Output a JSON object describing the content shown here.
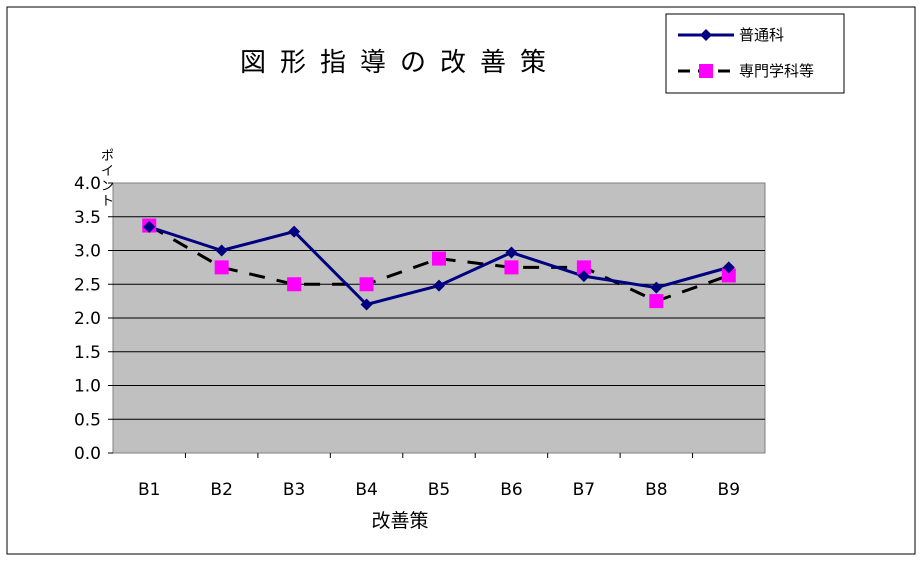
{
  "chart_data": {
    "type": "line",
    "title": "図形指導の改善策",
    "xlabel": "改善策",
    "ylabel": "ポイント",
    "categories": [
      "B1",
      "B2",
      "B3",
      "B4",
      "B5",
      "B6",
      "B7",
      "B8",
      "B9"
    ],
    "ylim": [
      0,
      4
    ],
    "yticks": [
      "0.0",
      "0.5",
      "1.0",
      "1.5",
      "2.0",
      "2.5",
      "3.0",
      "3.5",
      "4.0"
    ],
    "grid": true,
    "legend_position": "top-right",
    "plot_background": "#c0c0c0",
    "series": [
      {
        "name": "普通科",
        "color": "#000080",
        "marker": "diamond",
        "line": "solid",
        "values": [
          3.35,
          3.0,
          3.28,
          2.2,
          2.48,
          2.97,
          2.62,
          2.45,
          2.75
        ]
      },
      {
        "name": "専門学科等",
        "color": "#000000",
        "marker_color": "#ff00ff",
        "marker": "square",
        "line": "dashed",
        "values": [
          3.37,
          2.75,
          2.5,
          2.5,
          2.88,
          2.75,
          2.75,
          2.25,
          2.63
        ]
      }
    ]
  }
}
